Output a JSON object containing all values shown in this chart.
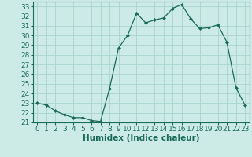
{
  "x": [
    0,
    1,
    2,
    3,
    4,
    5,
    6,
    7,
    8,
    9,
    10,
    11,
    12,
    13,
    14,
    15,
    16,
    17,
    18,
    19,
    20,
    21,
    22,
    23
  ],
  "y": [
    23,
    22.8,
    22.2,
    21.8,
    21.5,
    21.5,
    21.2,
    21.1,
    24.5,
    28.7,
    30.0,
    32.3,
    31.3,
    31.6,
    31.8,
    32.8,
    33.2,
    31.7,
    30.7,
    30.8,
    31.1,
    29.3,
    24.6,
    22.8
  ],
  "xlabel": "Humidex (Indice chaleur)",
  "xlim": [
    -0.5,
    23.5
  ],
  "ylim": [
    21,
    33.5
  ],
  "yticks": [
    21,
    22,
    23,
    24,
    25,
    26,
    27,
    28,
    29,
    30,
    31,
    32,
    33
  ],
  "xticks": [
    0,
    1,
    2,
    3,
    4,
    5,
    6,
    7,
    8,
    9,
    10,
    11,
    12,
    13,
    14,
    15,
    16,
    17,
    18,
    19,
    20,
    21,
    22,
    23
  ],
  "line_color": "#1a6b5a",
  "marker": "D",
  "marker_size": 2.0,
  "bg_color": "#cceae6",
  "grid_color": "#aad4ce",
  "axis_fontsize": 6.5,
  "label_fontsize": 7.5
}
